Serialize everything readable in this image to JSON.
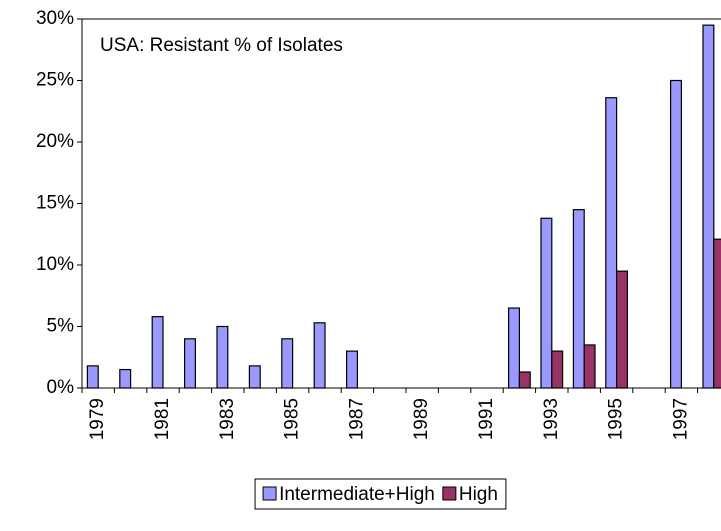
{
  "chart_data": {
    "type": "bar",
    "title": "USA: Resistant % of Isolates",
    "categories": [
      "1979",
      null,
      "1981",
      null,
      "1983",
      null,
      "1985",
      null,
      "1987",
      null,
      "1989",
      null,
      "1991",
      null,
      "1993",
      null,
      "1995",
      null,
      "1997",
      null
    ],
    "series": [
      {
        "name": "Intermediate+High",
        "color": "#9999ff",
        "values": [
          1.8,
          1.5,
          5.8,
          4.0,
          5.0,
          1.8,
          4.0,
          5.3,
          3.0,
          null,
          null,
          null,
          null,
          6.5,
          13.8,
          14.5,
          23.6,
          null,
          25.0,
          29.5
        ]
      },
      {
        "name": "High",
        "color": "#993366",
        "values": [
          null,
          null,
          null,
          null,
          null,
          null,
          null,
          null,
          null,
          null,
          null,
          null,
          null,
          1.3,
          3.0,
          3.5,
          9.5,
          null,
          null,
          12.1
        ]
      }
    ],
    "ylim": [
      0,
      30
    ],
    "yticks": [
      {
        "value": 0,
        "label": "0%"
      },
      {
        "value": 5,
        "label": "5%"
      },
      {
        "value": 10,
        "label": "10%"
      },
      {
        "value": 15,
        "label": "15%"
      },
      {
        "value": 20,
        "label": "20%"
      },
      {
        "value": 25,
        "label": "25%"
      },
      {
        "value": 30,
        "label": "30%"
      }
    ],
    "legend": "bottom"
  }
}
